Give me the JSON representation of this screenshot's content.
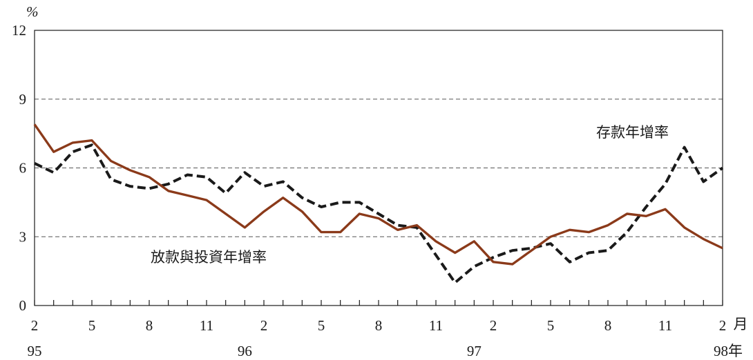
{
  "chart_data": {
    "type": "line",
    "ylim": [
      0,
      12
    ],
    "y_ticks": [
      0,
      3,
      6,
      9,
      12
    ],
    "y_unit": "%",
    "x_tick_labels": [
      "2",
      "5",
      "8",
      "11",
      "2",
      "5",
      "8",
      "11",
      "2",
      "5",
      "8",
      "11",
      "2"
    ],
    "x_unit": "月",
    "year_labels": [
      "95",
      "96",
      "97",
      "98年"
    ],
    "grid": "horizontal-dashed",
    "x": [
      "95/2",
      "95/3",
      "95/4",
      "95/5",
      "95/6",
      "95/7",
      "95/8",
      "95/9",
      "95/10",
      "95/11",
      "95/12",
      "96/1",
      "96/2",
      "96/3",
      "96/4",
      "96/5",
      "96/6",
      "96/7",
      "96/8",
      "96/9",
      "96/10",
      "96/11",
      "96/12",
      "97/1",
      "97/2",
      "97/3",
      "97/4",
      "97/5",
      "97/6",
      "97/7",
      "97/8",
      "97/9",
      "97/10",
      "97/11",
      "97/12",
      "98/1",
      "98/2"
    ],
    "series": [
      {
        "name": "存款年增率",
        "style": "dashed",
        "color": "#1a1a1a",
        "values": [
          6.2,
          5.8,
          6.7,
          7.0,
          5.5,
          5.2,
          5.1,
          5.3,
          5.7,
          5.6,
          4.9,
          5.8,
          5.2,
          5.4,
          4.7,
          4.3,
          4.5,
          4.5,
          4.0,
          3.5,
          3.4,
          2.2,
          1.0,
          1.7,
          2.1,
          2.4,
          2.5,
          2.7,
          1.9,
          2.3,
          2.4,
          3.2,
          4.3,
          5.3,
          6.9,
          5.4,
          6.0
        ]
      },
      {
        "name": "放款與投資年增率",
        "style": "solid",
        "color": "#8b3a1a",
        "values": [
          7.9,
          6.7,
          7.1,
          7.2,
          6.3,
          5.9,
          5.6,
          5.0,
          4.8,
          4.6,
          4.0,
          3.4,
          4.1,
          4.7,
          4.1,
          3.2,
          3.2,
          4.0,
          3.8,
          3.3,
          3.5,
          2.8,
          2.3,
          2.8,
          1.9,
          1.8,
          2.4,
          3.0,
          3.3,
          3.2,
          3.5,
          4.0,
          3.9,
          4.2,
          3.4,
          2.9,
          2.5
        ]
      }
    ]
  }
}
